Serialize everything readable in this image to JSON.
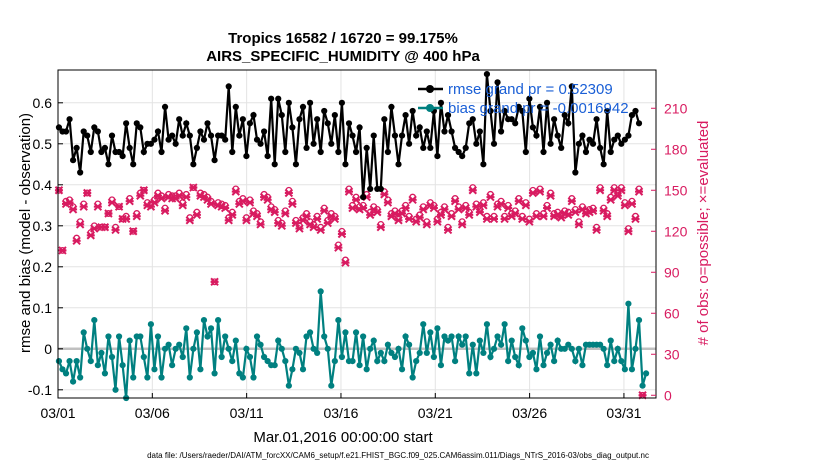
{
  "chart_data": {
    "type": "line",
    "title_line1": "Tropics 16582 / 16720 = 99.175%",
    "title_line2": "AIRS_SPECIFIC_HUMIDITY @ 400 hPa",
    "ylabel_left": "rmse and bias (model - observation)",
    "ylabel_right": "# of obs: o=possible; ×=evaluated",
    "xlabel": "Mar.01,2016 00:00:00 start",
    "footer": "data file: /Users/raeder/DAI/ATM_forcXX/CAM6_setup/f.e21.FHIST_BGC.f09_025.CAM6assim.011/Diags_NTrS_2016-03/obs_diag_output.nc",
    "ylim_left": [
      -0.12,
      0.68
    ],
    "ylim_right": [
      -2,
      238
    ],
    "xlim": [
      0,
      31.7
    ],
    "yticks_left": [
      "-0.1",
      "0",
      "0.1",
      "0.2",
      "0.3",
      "0.4",
      "0.5",
      "0.6"
    ],
    "yticks_right": [
      "0",
      "30",
      "60",
      "90",
      "120",
      "150",
      "180",
      "210"
    ],
    "xticks": [
      "03/01",
      "03/06",
      "03/11",
      "03/16",
      "03/21",
      "03/26",
      "03/31"
    ],
    "xtick_days": [
      0,
      5,
      10,
      15,
      20,
      25,
      30
    ],
    "grid": true,
    "legend": [
      {
        "label": "rmse grand pr = 0.52309",
        "color": "#000000"
      },
      {
        "label": "bias grand pr = -0.0016942",
        "color": "#008080"
      }
    ],
    "colors": {
      "rmse": "#000000",
      "bias": "#008080",
      "obs": "#d81b60",
      "zero": "#c0c0c0",
      "legend_text": "#1a5fd6"
    },
    "series": [
      {
        "name": "rmse",
        "axis": "left",
        "values": [
          0.54,
          0.53,
          0.53,
          0.56,
          0.46,
          0.49,
          0.43,
          0.53,
          0.52,
          0.48,
          0.54,
          0.53,
          0.48,
          0.49,
          0.45,
          0.52,
          0.48,
          0.48,
          0.47,
          0.55,
          0.49,
          0.45,
          0.55,
          0.54,
          0.48,
          0.5,
          0.5,
          0.51,
          0.53,
          0.48,
          0.59,
          0.51,
          0.52,
          0.5,
          0.56,
          0.52,
          0.55,
          0.52,
          0.45,
          0.49,
          0.53,
          0.51,
          0.55,
          0.52,
          0.46,
          0.52,
          0.52,
          0.51,
          0.64,
          0.48,
          0.59,
          0.52,
          0.56,
          0.47,
          0.55,
          0.57,
          0.51,
          0.5,
          0.53,
          0.47,
          0.61,
          0.45,
          0.61,
          0.57,
          0.48,
          0.6,
          0.54,
          0.45,
          0.56,
          0.59,
          0.49,
          0.6,
          0.5,
          0.56,
          0.48,
          0.58,
          0.55,
          0.5,
          0.57,
          0.48,
          0.6,
          0.45,
          0.55,
          0.52,
          0.48,
          0.54,
          0.37,
          0.49,
          0.39,
          0.52,
          0.39,
          0.39,
          0.56,
          0.48,
          0.59,
          0.52,
          0.45,
          0.52,
          0.57,
          0.5,
          0.58,
          0.52,
          0.54,
          0.49,
          0.53,
          0.49,
          0.58,
          0.47,
          0.6,
          0.53,
          0.57,
          0.53,
          0.49,
          0.48,
          0.47,
          0.49,
          0.55,
          0.56,
          0.5,
          0.53,
          0.45,
          0.67,
          0.58,
          0.5,
          0.65,
          0.53,
          0.58,
          0.56,
          0.56,
          0.55,
          0.59,
          0.58,
          0.48,
          0.61,
          0.54,
          0.52,
          0.59,
          0.48,
          0.6,
          0.5,
          0.56,
          0.52,
          0.49,
          0.57,
          0.55,
          0.64,
          0.43,
          0.5,
          0.52,
          0.48,
          0.51,
          0.5,
          0.56,
          0.49,
          0.45,
          0.58,
          0.48,
          0.51,
          0.52,
          0.5,
          0.51,
          0.52,
          0.57,
          0.58,
          0.55
        ]
      },
      {
        "name": "bias",
        "axis": "left",
        "values": [
          -0.03,
          -0.05,
          -0.06,
          -0.03,
          -0.08,
          -0.03,
          -0.07,
          0.04,
          0.0,
          -0.03,
          0.07,
          -0.04,
          -0.01,
          -0.06,
          0.03,
          -0.02,
          -0.1,
          0.03,
          -0.04,
          -0.12,
          0.02,
          -0.07,
          0.03,
          0.03,
          -0.02,
          -0.07,
          0.06,
          -0.05,
          0.03,
          -0.07,
          0.0,
          0.01,
          -0.04,
          0.0,
          0.01,
          -0.02,
          0.05,
          -0.07,
          0.0,
          0.04,
          -0.05,
          0.07,
          0.03,
          0.05,
          -0.06,
          0.07,
          -0.02,
          0.03,
          0.0,
          -0.03,
          0.02,
          -0.06,
          -0.07,
          0.0,
          -0.02,
          -0.07,
          0.03,
          0.01,
          -0.02,
          -0.03,
          -0.04,
          -0.04,
          0.02,
          0.0,
          -0.03,
          -0.09,
          -0.05,
          0.0,
          -0.01,
          -0.05,
          0.03,
          0.04,
          0.0,
          -0.01,
          0.14,
          0.03,
          0.0,
          -0.09,
          -0.03,
          0.07,
          -0.02,
          0.04,
          -0.03,
          -0.03,
          0.04,
          -0.04,
          0.03,
          -0.05,
          0.0,
          0.02,
          -0.03,
          -0.01,
          -0.03,
          0.01,
          -0.01,
          -0.02,
          0.0,
          -0.05,
          0.03,
          0.01,
          -0.07,
          -0.03,
          -0.01,
          0.06,
          -0.01,
          0.04,
          -0.02,
          0.05,
          -0.04,
          0.03,
          0.02,
          0.03,
          -0.03,
          0.03,
          0.01,
          0.03,
          -0.06,
          0.01,
          -0.06,
          0.02,
          -0.01,
          0.06,
          -0.02,
          0.0,
          0.03,
          0.01,
          0.06,
          -0.03,
          0.02,
          -0.02,
          -0.04,
          0.05,
          0.02,
          -0.02,
          -0.01,
          -0.05,
          0.03,
          -0.04,
          -0.01,
          0.01,
          -0.03,
          0.02,
          0.0,
          0.0,
          0.01,
          0.0,
          -0.03,
          0.0,
          -0.04,
          0.01,
          0.01,
          0.01,
          0.01,
          0.01,
          0.0,
          -0.04,
          0.02,
          -0.03,
          0.0,
          -0.03,
          -0.05,
          0.11,
          -0.05,
          0.0,
          0.07,
          -0.09,
          -0.06
        ]
      },
      {
        "name": "obs_evaluated",
        "axis": "right",
        "values": [
          150,
          106,
          140,
          141,
          136,
          113,
          125,
          138,
          148,
          117,
          122,
          138,
          123,
          123,
          133,
          141,
          121,
          138,
          129,
          129,
          142,
          120,
          131,
          146,
          150,
          139,
          138,
          141,
          146,
          144,
          135,
          145,
          144,
          144,
          146,
          139,
          145,
          128,
          152,
          132,
          146,
          145,
          143,
          140,
          83,
          139,
          138,
          137,
          128,
          132,
          149,
          140,
          142,
          128,
          141,
          133,
          131,
          125,
          145,
          143,
          136,
          134,
          126,
          124,
          133,
          148,
          140,
          126,
          122,
          128,
          131,
          125,
          123,
          129,
          121,
          135,
          126,
          131,
          129,
          108,
          118,
          97,
          149,
          137,
          143,
          136,
          137,
          145,
          132,
          136,
          134,
          123,
          147,
          141,
          131,
          133,
          128,
          133,
          137,
          129,
          143,
          127,
          130,
          136,
          125,
          139,
          137,
          127,
          132,
          136,
          121,
          131,
          142,
          136,
          125,
          137,
          132,
          150,
          138,
          134,
          139,
          129,
          145,
          129,
          138,
          140,
          129,
          137,
          131,
          133,
          142,
          129,
          139,
          127,
          148,
          131,
          149,
          131,
          137,
          146,
          131,
          132,
          130,
          133,
          132,
          142,
          134,
          125,
          136,
          133,
          134,
          135,
          121,
          150,
          135,
          131,
          143,
          150,
          146,
          150,
          139,
          120,
          140,
          129,
          149,
          0
        ]
      },
      {
        "name": "obs_possible",
        "axis": "right",
        "values": [
          150,
          106,
          142,
          143,
          138,
          115,
          127,
          140,
          148,
          119,
          124,
          140,
          123,
          123,
          133,
          143,
          123,
          138,
          129,
          131,
          144,
          120,
          133,
          148,
          150,
          141,
          140,
          143,
          148,
          146,
          137,
          147,
          146,
          146,
          148,
          141,
          147,
          130,
          152,
          134,
          148,
          147,
          145,
          142,
          83,
          141,
          140,
          139,
          130,
          134,
          151,
          142,
          144,
          130,
          143,
          135,
          133,
          127,
          147,
          145,
          138,
          136,
          128,
          126,
          135,
          150,
          142,
          128,
          124,
          130,
          133,
          127,
          125,
          131,
          123,
          137,
          128,
          133,
          131,
          110,
          120,
          99,
          151,
          139,
          145,
          138,
          139,
          147,
          134,
          138,
          136,
          125,
          149,
          143,
          133,
          135,
          130,
          135,
          139,
          131,
          145,
          129,
          132,
          138,
          127,
          141,
          139,
          129,
          134,
          138,
          123,
          133,
          144,
          138,
          127,
          139,
          134,
          152,
          140,
          136,
          141,
          131,
          147,
          131,
          140,
          142,
          131,
          139,
          133,
          135,
          144,
          131,
          141,
          129,
          150,
          133,
          151,
          133,
          139,
          148,
          133,
          134,
          132,
          135,
          134,
          144,
          136,
          127,
          138,
          135,
          136,
          137,
          123,
          152,
          137,
          133,
          145,
          152,
          148,
          152,
          141,
          122,
          142,
          131,
          151,
          0
        ]
      }
    ]
  }
}
